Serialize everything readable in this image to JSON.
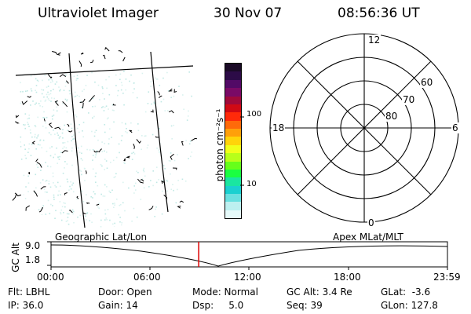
{
  "header": {
    "title": "Ultraviolet Imager",
    "date": "30 Nov 07",
    "time": "08:56:36 UT"
  },
  "colorbar": {
    "unit_label": "photon cm⁻²s⁻¹",
    "tick_labels": [
      "100",
      "10"
    ],
    "colors_top_to_bottom": [
      "#1a0a26",
      "#2c0b47",
      "#520a66",
      "#7a0a66",
      "#a00a3a",
      "#d00a14",
      "#ff2a0a",
      "#ff6a0a",
      "#ffa00a",
      "#ffd40a",
      "#f0ff1a",
      "#b8ff1a",
      "#66ff1a",
      "#1aff40",
      "#1ae6a0",
      "#1ad0d0",
      "#6ae0e0",
      "#bdf0f0",
      "#e6fafa"
    ]
  },
  "polar_plot": {
    "mlt_labels": [
      "12",
      "18",
      "6",
      "0"
    ],
    "mlat_labels": [
      "60",
      "70",
      "80"
    ]
  },
  "timeline": {
    "left_label": "Geographic Lat/Lon",
    "right_label": "Apex MLat/MLT",
    "axis_title": "GC Alt",
    "y_ticks": [
      "9.0",
      "1.8"
    ],
    "x_ticks": [
      "00:00",
      "06:00",
      "12:00",
      "18:00",
      "23:59"
    ],
    "current_time_marker_hours": 8.94,
    "marker_color": "#dd0000"
  },
  "info": {
    "flt": "Flt: LBHL",
    "door": "Door: Open",
    "mode": "Mode: Normal",
    "gc_alt": "GC Alt: 3.4 Re",
    "glat": "GLat:  -3.6",
    "ip": "IP: 36.0",
    "gain": "Gain: 14",
    "dsp": "Dsp:     5.0",
    "seq": "Seq: 39",
    "glon": "GLon: 127.8"
  }
}
